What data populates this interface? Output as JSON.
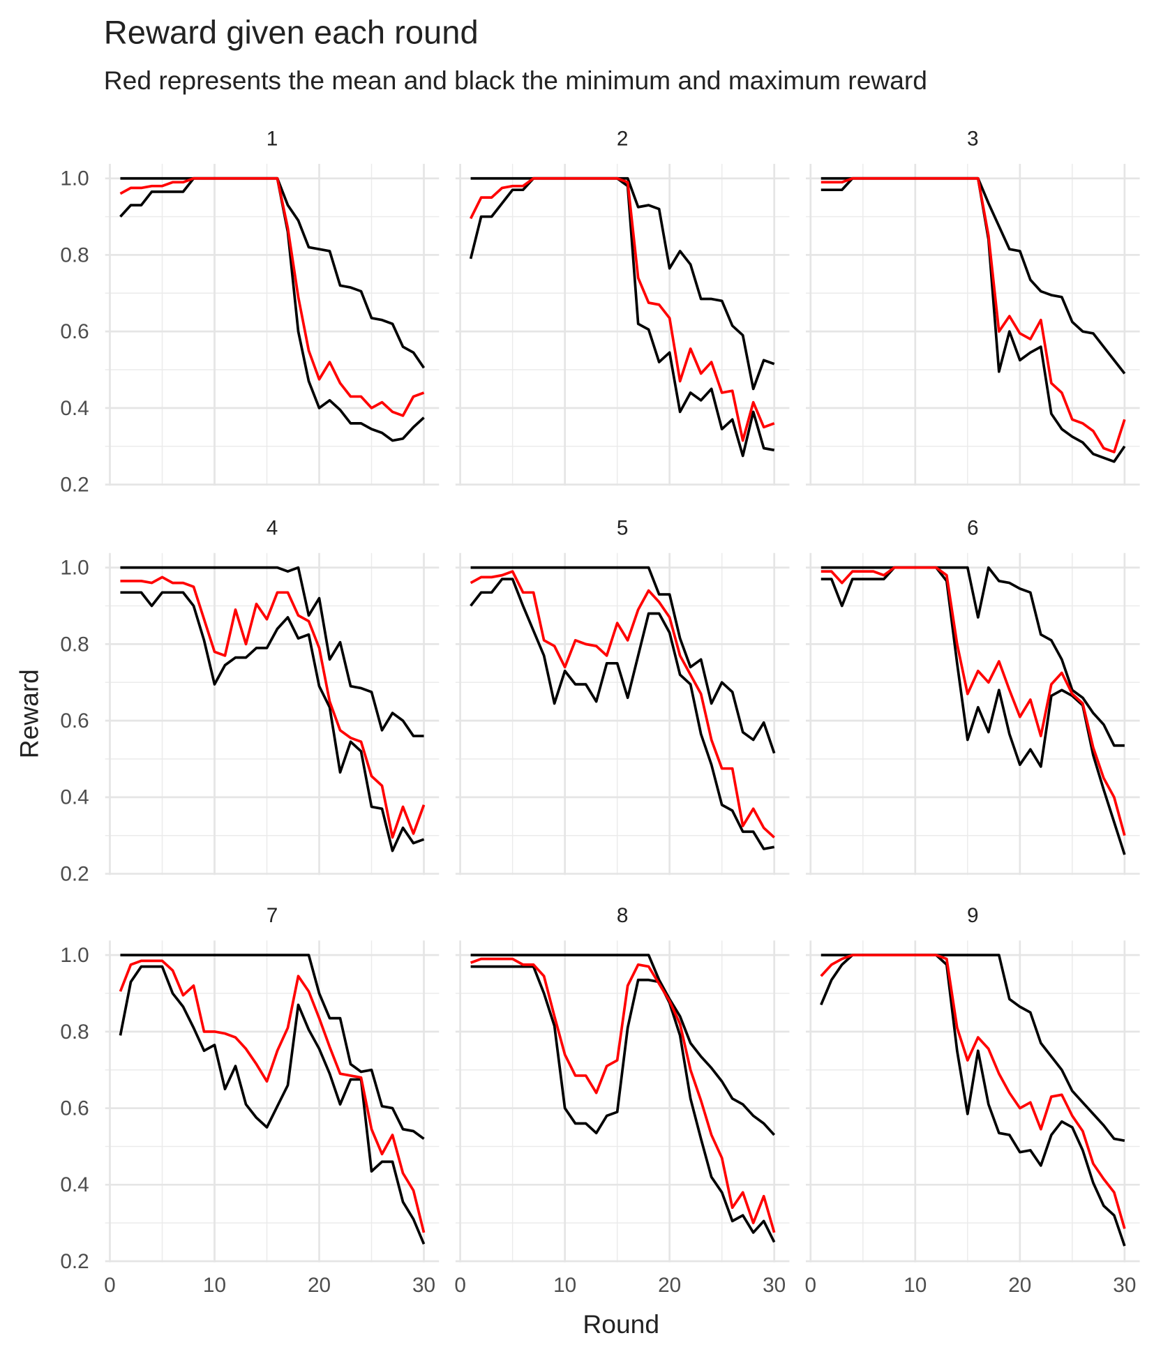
{
  "chart_data": {
    "type": "line",
    "title": "Reward given each round",
    "subtitle": "Red represents the mean and black the minimum and maximum reward",
    "xlabel": "Round",
    "ylabel": "Reward",
    "xlim": [
      -0.45,
      31.45
    ],
    "ylim": [
      0.197,
      1.038
    ],
    "xticks": [
      0,
      10,
      20,
      30
    ],
    "minor_xticks": [
      5,
      15,
      25
    ],
    "yticks": [
      0.2,
      0.4,
      0.6,
      0.8,
      {
        "value": 1,
        "label": "1.0"
      }
    ],
    "minor_yticks": [
      0.3,
      0.5,
      0.7,
      0.9
    ],
    "grid": true,
    "x": [
      1,
      2,
      3,
      4,
      5,
      6,
      7,
      8,
      9,
      10,
      11,
      12,
      13,
      14,
      15,
      16,
      17,
      18,
      19,
      20,
      21,
      22,
      23,
      24,
      25,
      26,
      27,
      28,
      29,
      30
    ],
    "panels": [
      {
        "title": "1",
        "series": [
          {
            "color": "#000000",
            "values": [
              1,
              1,
              1,
              1,
              1,
              1,
              1,
              1,
              1,
              1,
              1,
              1,
              1,
              1,
              1,
              1,
              0.93,
              0.89,
              0.82,
              0.815,
              0.81,
              0.72,
              0.715,
              0.705,
              0.635,
              0.63,
              0.62,
              0.56,
              0.545,
              0.505
            ]
          },
          {
            "color": "#000000",
            "values": [
              0.9,
              0.93,
              0.93,
              0.965,
              0.965,
              0.965,
              0.965,
              1,
              1,
              1,
              1,
              1,
              1,
              1,
              1,
              1,
              0.86,
              0.6,
              0.47,
              0.4,
              0.42,
              0.395,
              0.36,
              0.36,
              0.345,
              0.335,
              0.315,
              0.32,
              0.35,
              0.375
            ]
          },
          {
            "color": "#ff0000",
            "values": [
              0.96,
              0.975,
              0.975,
              0.98,
              0.98,
              0.99,
              0.99,
              1,
              1,
              1,
              1,
              1,
              1,
              1,
              1,
              1,
              0.87,
              0.69,
              0.55,
              0.475,
              0.52,
              0.465,
              0.43,
              0.43,
              0.4,
              0.415,
              0.39,
              0.38,
              0.43,
              0.44
            ]
          }
        ]
      },
      {
        "title": "2",
        "series": [
          {
            "color": "#000000",
            "values": [
              1,
              1,
              1,
              1,
              1,
              1,
              1,
              1,
              1,
              1,
              1,
              1,
              1,
              1,
              1,
              1,
              0.925,
              0.93,
              0.92,
              0.765,
              0.81,
              0.775,
              0.685,
              0.685,
              0.68,
              0.615,
              0.59,
              0.45,
              0.525,
              0.515
            ]
          },
          {
            "color": "#000000",
            "values": [
              0.79,
              0.9,
              0.9,
              0.935,
              0.97,
              0.97,
              1,
              1,
              1,
              1,
              1,
              1,
              1,
              1,
              1,
              0.98,
              0.62,
              0.605,
              0.52,
              0.545,
              0.39,
              0.44,
              0.42,
              0.45,
              0.345,
              0.37,
              0.275,
              0.39,
              0.295,
              0.29
            ]
          },
          {
            "color": "#ff0000",
            "values": [
              0.895,
              0.95,
              0.95,
              0.975,
              0.98,
              0.98,
              1,
              1,
              1,
              1,
              1,
              1,
              1,
              1,
              1,
              0.99,
              0.74,
              0.675,
              0.67,
              0.635,
              0.47,
              0.555,
              0.49,
              0.52,
              0.44,
              0.445,
              0.315,
              0.415,
              0.35,
              0.36
            ]
          }
        ]
      },
      {
        "title": "3",
        "series": [
          {
            "color": "#000000",
            "values": [
              1,
              1,
              1,
              1,
              1,
              1,
              1,
              1,
              1,
              1,
              1,
              1,
              1,
              1,
              1,
              1,
              0.935,
              0.875,
              0.815,
              0.81,
              0.735,
              0.705,
              0.695,
              0.69,
              0.625,
              0.6,
              0.595,
              0.56,
              0.525,
              0.49
            ]
          },
          {
            "color": "#000000",
            "values": [
              0.97,
              0.97,
              0.97,
              1,
              1,
              1,
              1,
              1,
              1,
              1,
              1,
              1,
              1,
              1,
              1,
              1,
              0.84,
              0.495,
              0.6,
              0.525,
              0.545,
              0.56,
              0.385,
              0.345,
              0.325,
              0.31,
              0.28,
              0.27,
              0.26,
              0.3
            ]
          },
          {
            "color": "#ff0000",
            "values": [
              0.99,
              0.99,
              0.99,
              1,
              1,
              1,
              1,
              1,
              1,
              1,
              1,
              1,
              1,
              1,
              1,
              1,
              0.85,
              0.6,
              0.64,
              0.595,
              0.58,
              0.63,
              0.465,
              0.44,
              0.37,
              0.36,
              0.34,
              0.295,
              0.285,
              0.37
            ]
          }
        ]
      },
      {
        "title": "4",
        "series": [
          {
            "color": "#000000",
            "values": [
              1,
              1,
              1,
              1,
              1,
              1,
              1,
              1,
              1,
              1,
              1,
              1,
              1,
              1,
              1,
              1,
              0.99,
              1,
              0.875,
              0.92,
              0.76,
              0.805,
              0.69,
              0.685,
              0.675,
              0.575,
              0.62,
              0.6,
              0.56,
              0.56
            ]
          },
          {
            "color": "#000000",
            "values": [
              0.935,
              0.935,
              0.935,
              0.9,
              0.935,
              0.935,
              0.935,
              0.9,
              0.81,
              0.695,
              0.745,
              0.765,
              0.765,
              0.79,
              0.79,
              0.84,
              0.87,
              0.815,
              0.825,
              0.69,
              0.635,
              0.465,
              0.545,
              0.52,
              0.375,
              0.37,
              0.26,
              0.32,
              0.28,
              0.29
            ]
          },
          {
            "color": "#ff0000",
            "values": [
              0.965,
              0.965,
              0.965,
              0.96,
              0.975,
              0.96,
              0.96,
              0.95,
              0.865,
              0.78,
              0.77,
              0.89,
              0.8,
              0.905,
              0.865,
              0.935,
              0.935,
              0.875,
              0.86,
              0.79,
              0.65,
              0.575,
              0.555,
              0.545,
              0.455,
              0.43,
              0.295,
              0.375,
              0.305,
              0.38
            ]
          }
        ]
      },
      {
        "title": "5",
        "series": [
          {
            "color": "#000000",
            "values": [
              1,
              1,
              1,
              1,
              1,
              1,
              1,
              1,
              1,
              1,
              1,
              1,
              1,
              1,
              1,
              1,
              1,
              1,
              0.93,
              0.93,
              0.815,
              0.74,
              0.76,
              0.645,
              0.7,
              0.675,
              0.57,
              0.55,
              0.595,
              0.515
            ]
          },
          {
            "color": "#000000",
            "values": [
              0.9,
              0.935,
              0.935,
              0.97,
              0.97,
              0.9,
              0.835,
              0.77,
              0.645,
              0.73,
              0.695,
              0.695,
              0.65,
              0.75,
              0.75,
              0.66,
              0.77,
              0.88,
              0.88,
              0.83,
              0.72,
              0.695,
              0.565,
              0.485,
              0.38,
              0.365,
              0.31,
              0.31,
              0.265,
              0.27
            ]
          },
          {
            "color": "#ff0000",
            "values": [
              0.96,
              0.975,
              0.975,
              0.98,
              0.99,
              0.935,
              0.935,
              0.81,
              0.795,
              0.74,
              0.81,
              0.8,
              0.795,
              0.77,
              0.855,
              0.81,
              0.89,
              0.94,
              0.91,
              0.87,
              0.77,
              0.72,
              0.67,
              0.55,
              0.475,
              0.475,
              0.325,
              0.37,
              0.32,
              0.295
            ]
          }
        ]
      },
      {
        "title": "6",
        "series": [
          {
            "color": "#000000",
            "values": [
              1,
              1,
              1,
              1,
              1,
              1,
              1,
              1,
              1,
              1,
              1,
              1,
              1,
              1,
              1,
              0.87,
              1,
              0.965,
              0.96,
              0.945,
              0.935,
              0.825,
              0.81,
              0.76,
              0.68,
              0.66,
              0.62,
              0.59,
              0.535,
              0.535
            ]
          },
          {
            "color": "#000000",
            "values": [
              0.97,
              0.97,
              0.9,
              0.97,
              0.97,
              0.97,
              0.97,
              1,
              1,
              1,
              1,
              1,
              0.965,
              0.75,
              0.55,
              0.635,
              0.57,
              0.68,
              0.565,
              0.485,
              0.525,
              0.48,
              0.665,
              0.68,
              0.665,
              0.64,
              0.51,
              0.42,
              0.335,
              0.25
            ]
          },
          {
            "color": "#ff0000",
            "values": [
              0.99,
              0.99,
              0.96,
              0.99,
              0.99,
              0.99,
              0.98,
              1,
              1,
              1,
              1,
              1,
              0.98,
              0.8,
              0.67,
              0.73,
              0.7,
              0.755,
              0.68,
              0.61,
              0.655,
              0.56,
              0.695,
              0.725,
              0.67,
              0.645,
              0.53,
              0.45,
              0.4,
              0.3
            ]
          }
        ]
      },
      {
        "title": "7",
        "series": [
          {
            "color": "#000000",
            "values": [
              1,
              1,
              1,
              1,
              1,
              1,
              1,
              1,
              1,
              1,
              1,
              1,
              1,
              1,
              1,
              1,
              1,
              1,
              1,
              0.9,
              0.835,
              0.835,
              0.715,
              0.695,
              0.7,
              0.605,
              0.6,
              0.545,
              0.54,
              0.52
            ]
          },
          {
            "color": "#000000",
            "values": [
              0.79,
              0.93,
              0.97,
              0.97,
              0.97,
              0.9,
              0.865,
              0.81,
              0.75,
              0.765,
              0.65,
              0.71,
              0.61,
              0.575,
              0.55,
              0.605,
              0.66,
              0.87,
              0.805,
              0.755,
              0.69,
              0.61,
              0.675,
              0.675,
              0.435,
              0.46,
              0.46,
              0.355,
              0.31,
              0.245
            ]
          },
          {
            "color": "#ff0000",
            "values": [
              0.905,
              0.975,
              0.985,
              0.985,
              0.985,
              0.96,
              0.895,
              0.92,
              0.8,
              0.8,
              0.795,
              0.785,
              0.755,
              0.715,
              0.67,
              0.75,
              0.81,
              0.945,
              0.905,
              0.835,
              0.76,
              0.69,
              0.685,
              0.68,
              0.545,
              0.48,
              0.53,
              0.43,
              0.385,
              0.275
            ]
          }
        ]
      },
      {
        "title": "8",
        "series": [
          {
            "color": "#000000",
            "values": [
              1,
              1,
              1,
              1,
              1,
              1,
              1,
              1,
              1,
              1,
              1,
              1,
              1,
              1,
              1,
              1,
              1,
              1,
              0.935,
              0.885,
              0.84,
              0.77,
              0.735,
              0.705,
              0.67,
              0.625,
              0.61,
              0.58,
              0.56,
              0.53
            ]
          },
          {
            "color": "#000000",
            "values": [
              0.97,
              0.97,
              0.97,
              0.97,
              0.97,
              0.97,
              0.97,
              0.9,
              0.815,
              0.6,
              0.56,
              0.56,
              0.535,
              0.58,
              0.59,
              0.81,
              0.935,
              0.935,
              0.93,
              0.875,
              0.79,
              0.625,
              0.52,
              0.42,
              0.38,
              0.305,
              0.32,
              0.275,
              0.305,
              0.25
            ]
          },
          {
            "color": "#ff0000",
            "values": [
              0.98,
              0.99,
              0.99,
              0.99,
              0.99,
              0.975,
              0.975,
              0.945,
              0.84,
              0.74,
              0.685,
              0.685,
              0.64,
              0.71,
              0.725,
              0.92,
              0.975,
              0.97,
              0.925,
              0.88,
              0.82,
              0.7,
              0.62,
              0.53,
              0.47,
              0.34,
              0.38,
              0.3,
              0.37,
              0.275
            ]
          }
        ]
      },
      {
        "title": "9",
        "series": [
          {
            "color": "#000000",
            "values": [
              1,
              1,
              1,
              1,
              1,
              1,
              1,
              1,
              1,
              1,
              1,
              1,
              1,
              1,
              1,
              1,
              1,
              1,
              0.885,
              0.865,
              0.85,
              0.77,
              0.735,
              0.7,
              0.645,
              0.615,
              0.585,
              0.555,
              0.52,
              0.515
            ]
          },
          {
            "color": "#000000",
            "values": [
              0.87,
              0.935,
              0.975,
              1,
              1,
              1,
              1,
              1,
              1,
              1,
              1,
              1,
              0.975,
              0.75,
              0.585,
              0.75,
              0.61,
              0.535,
              0.53,
              0.485,
              0.49,
              0.45,
              0.53,
              0.565,
              0.55,
              0.49,
              0.405,
              0.345,
              0.32,
              0.24
            ]
          },
          {
            "color": "#ff0000",
            "values": [
              0.945,
              0.975,
              0.99,
              1,
              1,
              1,
              1,
              1,
              1,
              1,
              1,
              1,
              0.99,
              0.81,
              0.725,
              0.785,
              0.755,
              0.69,
              0.64,
              0.6,
              0.615,
              0.545,
              0.63,
              0.635,
              0.58,
              0.54,
              0.455,
              0.415,
              0.38,
              0.285
            ]
          }
        ]
      }
    ]
  }
}
